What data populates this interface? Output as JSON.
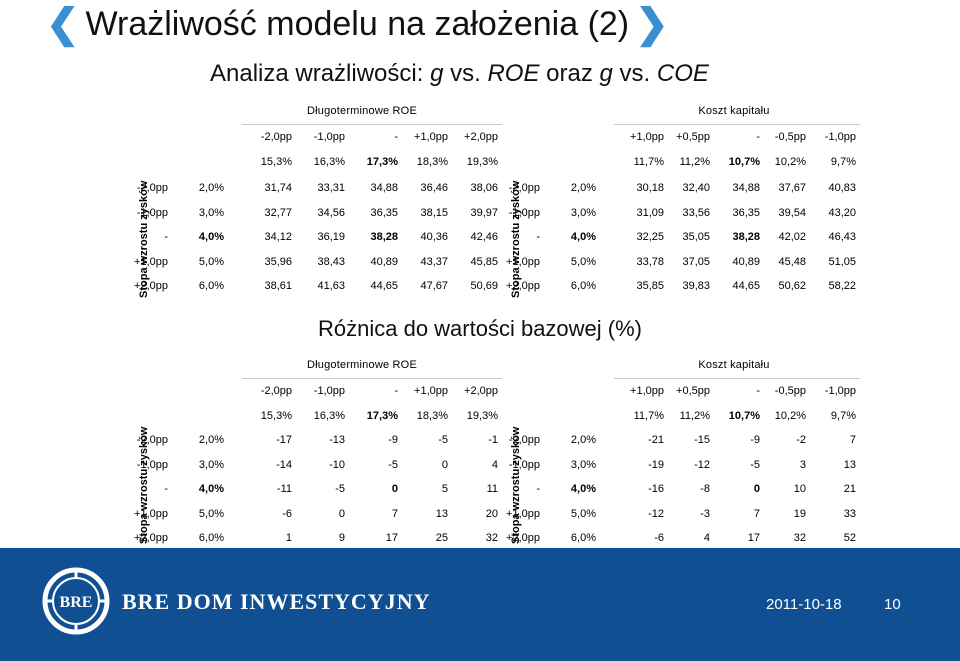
{
  "header": {
    "title": "Wrażliwość modelu na założenia (2)",
    "subtitle_prefix": "Analiza wrażliwości: ",
    "subtitle_g1": "g",
    "subtitle_mid1": " vs. ",
    "subtitle_roe": "ROE",
    "subtitle_mid2": " oraz ",
    "subtitle_g2": "g",
    "subtitle_mid3": " vs. ",
    "subtitle_coe": "COE"
  },
  "section2_title": "Różnica do wartości bazowej (%)",
  "left_table": {
    "group_label": "Długoterminowe ROE",
    "side_label": "Stopa wzrostu zysków",
    "shift_headers": [
      "-2,0pp",
      "-1,0pp",
      "-",
      "+1,0pp",
      "+2,0pp"
    ],
    "value_headers": [
      "15,3%",
      "16,3%",
      "17,3%",
      "18,3%",
      "19,3%"
    ]
  },
  "right_table": {
    "group_label": "Koszt kapitału",
    "side_label": "Stopa wzrostu zysków",
    "shift_headers": [
      "+1,0pp",
      "+0,5pp",
      "-",
      "-0,5pp",
      "-1,0pp"
    ],
    "value_headers": [
      "11,7%",
      "11,2%",
      "10,7%",
      "10,2%",
      "9,7%"
    ]
  },
  "lower_left_table": {
    "group_label": "Długoterminowe ROE",
    "side_label": "Stopa wzrostu zysków",
    "shift_headers": [
      "-2,0pp",
      "-1,0pp",
      "-",
      "+1,0pp",
      "+2,0pp"
    ],
    "value_headers": [
      "15,3%",
      "16,3%",
      "17,3%",
      "18,3%",
      "19,3%"
    ]
  },
  "lower_right_table": {
    "group_label": "Koszt kapitału",
    "side_label": "Stopa wzrostu zysków",
    "shift_headers": [
      "+1,0pp",
      "+0,5pp",
      "-",
      "-0,5pp",
      "-1,0pp"
    ],
    "value_headers": [
      "11,7%",
      "11,2%",
      "10,7%",
      "10,2%",
      "9,7%"
    ]
  },
  "row_shifts": [
    "-2,0pp",
    "-1,0pp",
    "-",
    "+1,0pp",
    "+2,0pp"
  ],
  "row_rates": [
    "2,0%",
    "3,0%",
    "4,0%",
    "5,0%",
    "6,0%"
  ],
  "t1": [
    [
      "31,74",
      "33,31",
      "34,88",
      "36,46",
      "38,06"
    ],
    [
      "32,77",
      "34,56",
      "36,35",
      "38,15",
      "39,97"
    ],
    [
      "34,12",
      "36,19",
      "38,28",
      "40,36",
      "42,46"
    ],
    [
      "35,96",
      "38,43",
      "40,89",
      "43,37",
      "45,85"
    ],
    [
      "38,61",
      "41,63",
      "44,65",
      "47,67",
      "50,69"
    ]
  ],
  "t2": [
    [
      "30,18",
      "32,40",
      "34,88",
      "37,67",
      "40,83"
    ],
    [
      "31,09",
      "33,56",
      "36,35",
      "39,54",
      "43,20"
    ],
    [
      "32,25",
      "35,05",
      "38,28",
      "42,02",
      "46,43"
    ],
    [
      "33,78",
      "37,05",
      "40,89",
      "45,48",
      "51,05"
    ],
    [
      "35,85",
      "39,83",
      "44,65",
      "50,62",
      "58,22"
    ]
  ],
  "t3": [
    [
      "-17",
      "-13",
      "-9",
      "-5",
      "-1"
    ],
    [
      "-14",
      "-10",
      "-5",
      "0",
      "4"
    ],
    [
      "-11",
      "-5",
      "0",
      "5",
      "11"
    ],
    [
      "-6",
      "0",
      "7",
      "13",
      "20"
    ],
    [
      "1",
      "9",
      "17",
      "25",
      "32"
    ]
  ],
  "t4": [
    [
      "-21",
      "-15",
      "-9",
      "-2",
      "7"
    ],
    [
      "-19",
      "-12",
      "-5",
      "3",
      "13"
    ],
    [
      "-16",
      "-8",
      "0",
      "10",
      "21"
    ],
    [
      "-12",
      "-3",
      "7",
      "19",
      "33"
    ],
    [
      "-6",
      "4",
      "17",
      "32",
      "52"
    ]
  ],
  "footer": {
    "brand": "BRE DOM INWESTYCYJNY",
    "logo_text": "BRE",
    "date": "2011-10-18",
    "page": "10"
  },
  "colors": {
    "chevron": "#3a8fd0",
    "footer_bg": "#0f4f92",
    "text": "#111111"
  }
}
